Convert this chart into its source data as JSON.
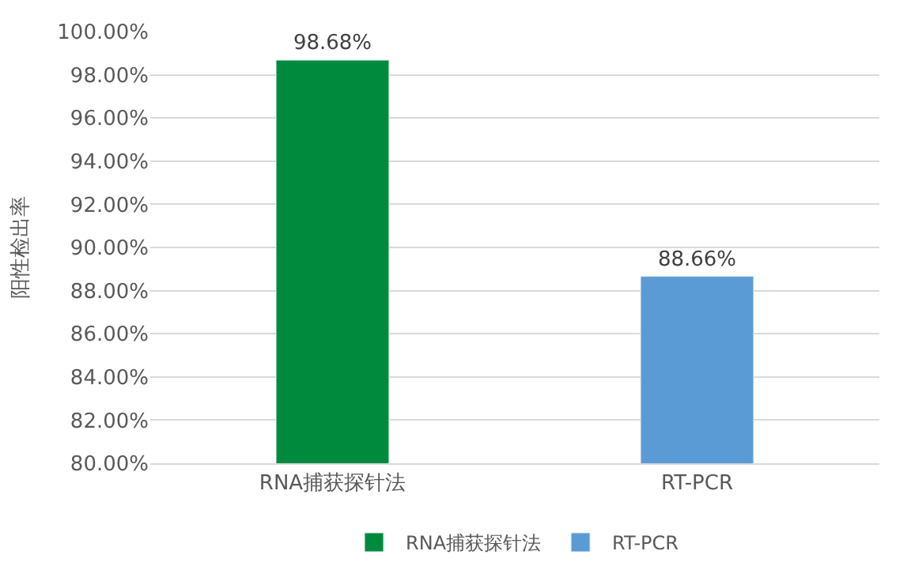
{
  "chart_data": {
    "type": "bar",
    "ylabel": "阳性检出率",
    "categories": [
      "RNA捕获探针法",
      "RT-PCR"
    ],
    "series": [
      {
        "name": "RNA捕获探针法",
        "color": "#008a3e",
        "values": [
          98.68,
          null
        ],
        "value_labels": [
          "98.68%",
          null
        ]
      },
      {
        "name": "RT-PCR",
        "color": "#5b9bd5",
        "values": [
          null,
          88.66
        ],
        "value_labels": [
          null,
          "88.66%"
        ]
      }
    ],
    "ylim": [
      80,
      100
    ],
    "yticks": [
      {
        "value": 80,
        "label": "80.00%"
      },
      {
        "value": 82,
        "label": "82.00%"
      },
      {
        "value": 84,
        "label": "84.00%"
      },
      {
        "value": 86,
        "label": "86.00%"
      },
      {
        "value": 88,
        "label": "88.00%"
      },
      {
        "value": 90,
        "label": "90.00%"
      },
      {
        "value": 92,
        "label": "92.00%"
      },
      {
        "value": 94,
        "label": "94.00%"
      },
      {
        "value": 96,
        "label": "96.00%"
      },
      {
        "value": 98,
        "label": "98.00%"
      },
      {
        "value": 100,
        "label": "100.00%"
      }
    ],
    "grid": "y",
    "legend": "bottom"
  }
}
